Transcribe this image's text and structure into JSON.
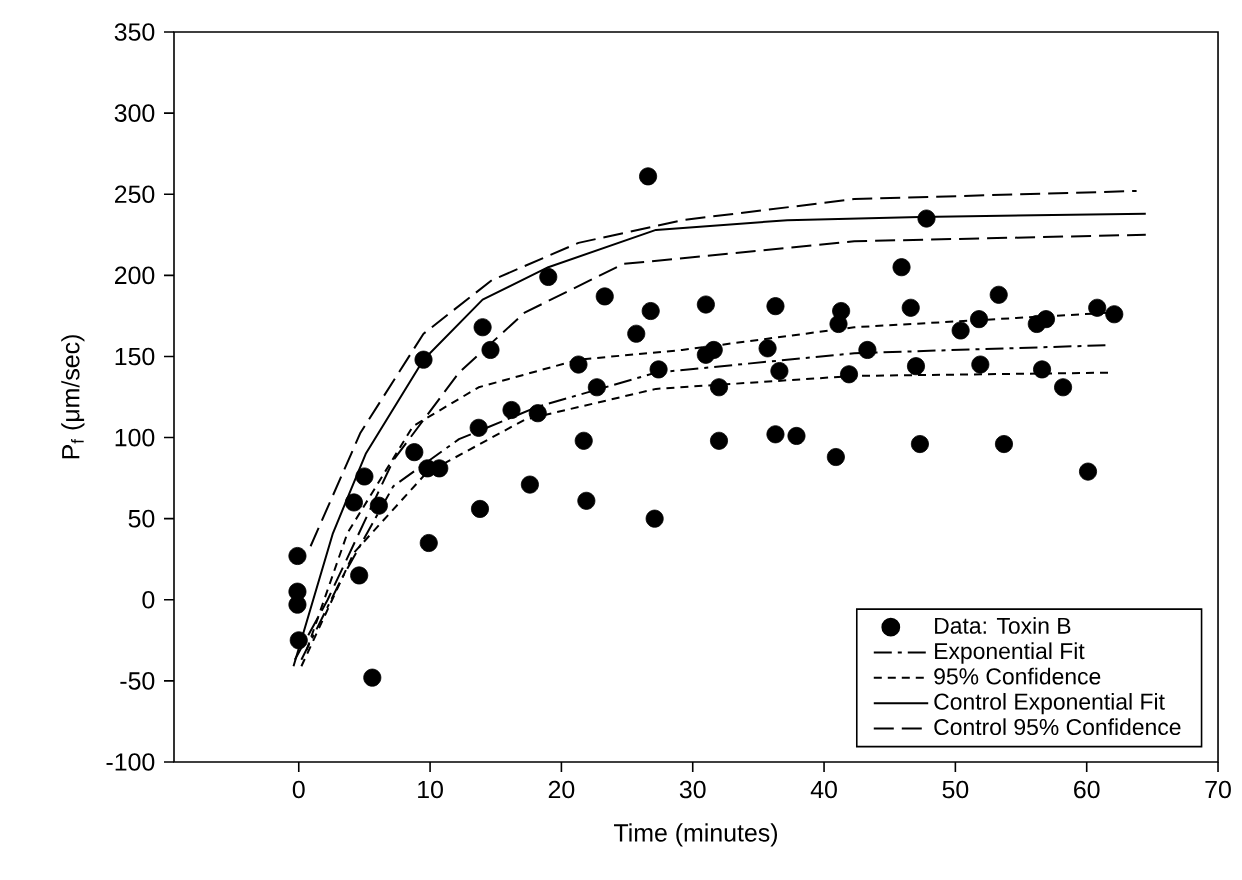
{
  "chart_data": {
    "type": "scatter",
    "xlabel": "Time (minutes)",
    "ylabel": "P$_{f}$ (μm/sec)",
    "xlim": [
      -9.5,
      70
    ],
    "ylim": [
      -100,
      350
    ],
    "xticks": [
      0,
      10,
      20,
      30,
      40,
      50,
      60,
      70
    ],
    "yticks": [
      -100,
      -50,
      0,
      50,
      100,
      150,
      200,
      250,
      300,
      350
    ],
    "legend": "bottom right",
    "grid": false,
    "marker": "circle",
    "series": [
      {
        "name": "Data: Toxin B",
        "color": "#000000",
        "x": [
          -0.1,
          -0.1,
          -0.1,
          0.0,
          5.6,
          4.6,
          4.2,
          5.0,
          6.1,
          8.8,
          9.5,
          9.8,
          10.7,
          9.9,
          13.7,
          13.8,
          14.0,
          14.6,
          16.2,
          17.6,
          18.2,
          19.0,
          21.3,
          21.7,
          21.9,
          22.7,
          23.3,
          25.7,
          26.6,
          26.8,
          27.1,
          27.4,
          31.0,
          31.0,
          31.6,
          32.0,
          32.0,
          36.3,
          35.7,
          36.6,
          36.3,
          37.9,
          40.9,
          41.3,
          41.1,
          41.9,
          43.3,
          45.9,
          46.6,
          47.0,
          47.3,
          47.8,
          50.4,
          51.8,
          51.9,
          53.3,
          53.7,
          56.2,
          56.9,
          56.6,
          58.2,
          60.1,
          60.8,
          62.1
        ],
        "values": [
          27,
          5,
          -3,
          -25,
          -48,
          15,
          60,
          76,
          58,
          91,
          148,
          81,
          81,
          35,
          106,
          56,
          168,
          154,
          117,
          71,
          115,
          199,
          145,
          98,
          61,
          131,
          187,
          164,
          261,
          178,
          50,
          142,
          182,
          151,
          154,
          131,
          98,
          181,
          155,
          141,
          102,
          101,
          88,
          178,
          170,
          139,
          154,
          205,
          180,
          144,
          96,
          235,
          166,
          173,
          145,
          188,
          96,
          170,
          173,
          142,
          131,
          79,
          180,
          176
        ]
      },
      {
        "name": "Exponential Fit",
        "type": "line",
        "marker": "none",
        "line_style": "dashdot",
        "color": "#000000",
        "x": [
          0.2,
          3.2,
          7.2,
          12.2,
          18.2,
          27.2,
          42.3,
          61.8
        ],
        "values": [
          -37,
          12,
          70,
          99,
          119,
          140,
          152,
          157
        ]
      },
      {
        "name": "95% Confidence",
        "type": "line",
        "marker": "none",
        "line_style": "dashed",
        "color": "#000000",
        "x": [
          0.6,
          3.7,
          8.7,
          13.7,
          21.3,
          29.2,
          42.3,
          61.8
        ],
        "values": [
          -31,
          41,
          107,
          131,
          148,
          154,
          168,
          177
        ]
      },
      {
        "type": "line",
        "marker": "none",
        "line_style": "dashed",
        "color": "#000000",
        "x": [
          0.2,
          4.2,
          9.7,
          17.2,
          27.2,
          42.3,
          61.8
        ],
        "values": [
          -41,
          29,
          78,
          111,
          130,
          138,
          140
        ]
      },
      {
        "name": "Control Exponential Fit",
        "type": "line",
        "marker": "none",
        "line_style": "solid",
        "color": "#000000",
        "x": [
          -0.4,
          2.6,
          5.1,
          9.5,
          14.0,
          19.0,
          27.2,
          37.2,
          47.3,
          64.5
        ],
        "values": [
          -41,
          41,
          90,
          148,
          185,
          205,
          228,
          234,
          236,
          238
        ]
      },
      {
        "name": "Control 95% Confidence",
        "type": "line",
        "marker": "none",
        "line_style": "longdashed",
        "color": "#000000",
        "x": [
          0.9,
          4.7,
          9.5,
          14.7,
          21.3,
          29.2,
          42.3,
          63.8
        ],
        "values": [
          33,
          103,
          164,
          197,
          220,
          234,
          247,
          252
        ]
      },
      {
        "type": "line",
        "marker": "none",
        "line_style": "longdashed",
        "color": "#000000",
        "x": [
          -0.3,
          2.2,
          7.2,
          12.2,
          17.2,
          24.7,
          42.3,
          64.5
        ],
        "values": [
          -37,
          0,
          86,
          140,
          177,
          207,
          221,
          225
        ]
      }
    ]
  }
}
